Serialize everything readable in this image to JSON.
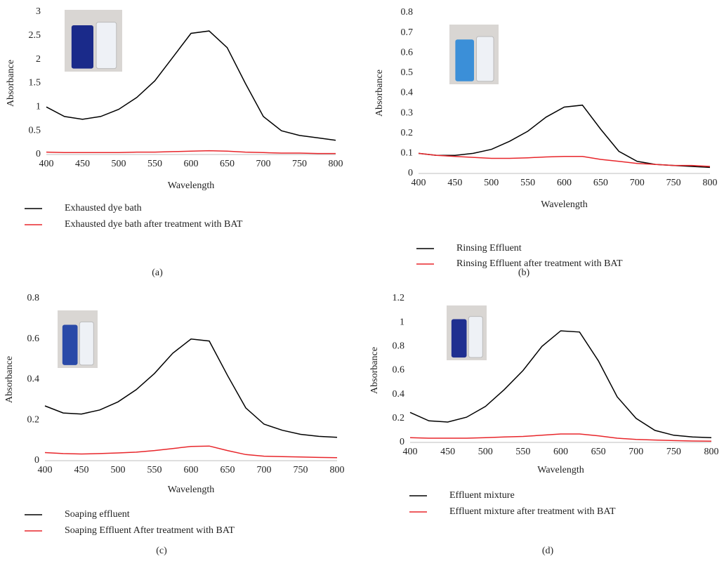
{
  "chart_data": [
    {
      "type": "line",
      "panel_label": "(a)",
      "x_label": "Wavelength",
      "y_label": "Absorbance",
      "x": [
        400,
        425,
        450,
        475,
        500,
        525,
        550,
        575,
        600,
        625,
        650,
        675,
        700,
        725,
        750,
        775,
        800
      ],
      "series": [
        {
          "name": "Exhausted dye bath",
          "color": "#000000",
          "values": [
            1.0,
            0.8,
            0.74,
            0.8,
            0.95,
            1.2,
            1.55,
            2.05,
            2.55,
            2.6,
            2.25,
            1.5,
            0.8,
            0.5,
            0.4,
            0.35,
            0.3
          ]
        },
        {
          "name": "Exhausted dye bath after treatment with BAT",
          "color": "#e8262b",
          "values": [
            0.05,
            0.04,
            0.04,
            0.04,
            0.04,
            0.05,
            0.05,
            0.06,
            0.07,
            0.08,
            0.07,
            0.05,
            0.04,
            0.03,
            0.03,
            0.02,
            0.02
          ]
        }
      ],
      "xlim": [
        400,
        800
      ],
      "xticks": [
        400,
        450,
        500,
        550,
        600,
        650,
        700,
        750,
        800
      ],
      "ylim": [
        0,
        3
      ],
      "yticks": [
        0,
        0.5,
        1,
        1.5,
        2,
        2.5,
        3
      ],
      "grid": false,
      "legend": "bottom"
    },
    {
      "type": "line",
      "panel_label": "(b)",
      "x_label": "Wavelength",
      "y_label": "Absorbance",
      "x": [
        400,
        425,
        450,
        475,
        500,
        525,
        550,
        575,
        600,
        625,
        650,
        675,
        700,
        725,
        750,
        775,
        800
      ],
      "series": [
        {
          "name": "Rinsing Effluent",
          "color": "#000000",
          "values": [
            0.1,
            0.09,
            0.09,
            0.1,
            0.12,
            0.16,
            0.21,
            0.28,
            0.33,
            0.34,
            0.22,
            0.11,
            0.06,
            0.045,
            0.04,
            0.035,
            0.03
          ]
        },
        {
          "name": "Rinsing Effluent after treatment with BAT",
          "color": "#e8262b",
          "values": [
            0.1,
            0.09,
            0.085,
            0.08,
            0.075,
            0.075,
            0.078,
            0.082,
            0.085,
            0.085,
            0.07,
            0.06,
            0.05,
            0.045,
            0.04,
            0.04,
            0.035
          ]
        }
      ],
      "xlim": [
        400,
        800
      ],
      "xticks": [
        400,
        450,
        500,
        550,
        600,
        650,
        700,
        750,
        800
      ],
      "ylim": [
        0,
        0.8
      ],
      "yticks": [
        0,
        0.1,
        0.2,
        0.3,
        0.4,
        0.5,
        0.6,
        0.7,
        0.8
      ],
      "grid": false,
      "legend": "bottom"
    },
    {
      "type": "line",
      "panel_label": "(c)",
      "x_label": "Wavelength",
      "y_label": "Absorbance",
      "x": [
        400,
        425,
        450,
        475,
        500,
        525,
        550,
        575,
        600,
        625,
        650,
        675,
        700,
        725,
        750,
        775,
        800
      ],
      "series": [
        {
          "name": "Soaping effluent",
          "color": "#000000",
          "values": [
            0.27,
            0.235,
            0.23,
            0.25,
            0.29,
            0.35,
            0.43,
            0.53,
            0.6,
            0.59,
            0.42,
            0.26,
            0.18,
            0.15,
            0.13,
            0.12,
            0.115
          ]
        },
        {
          "name": "Soaping Effluent After treatment with BAT",
          "color": "#e8262b",
          "values": [
            0.04,
            0.035,
            0.033,
            0.035,
            0.038,
            0.042,
            0.05,
            0.06,
            0.07,
            0.072,
            0.05,
            0.03,
            0.022,
            0.02,
            0.018,
            0.016,
            0.015
          ]
        }
      ],
      "xlim": [
        400,
        800
      ],
      "xticks": [
        400,
        450,
        500,
        550,
        600,
        650,
        700,
        750,
        800
      ],
      "ylim": [
        0,
        0.8
      ],
      "yticks": [
        0,
        0.2,
        0.4,
        0.6,
        0.8
      ],
      "grid": false,
      "legend": "bottom"
    },
    {
      "type": "line",
      "panel_label": "(d)",
      "x_label": "Wavelength",
      "y_label": "Absorbance",
      "x": [
        400,
        425,
        450,
        475,
        500,
        525,
        550,
        575,
        600,
        625,
        650,
        675,
        700,
        725,
        750,
        775,
        800
      ],
      "series": [
        {
          "name": "Effluent mixture",
          "color": "#000000",
          "values": [
            0.25,
            0.18,
            0.17,
            0.21,
            0.3,
            0.44,
            0.6,
            0.8,
            0.93,
            0.92,
            0.68,
            0.38,
            0.2,
            0.1,
            0.06,
            0.045,
            0.04
          ]
        },
        {
          "name": "Effluent mixture after treatment with BAT",
          "color": "#e8262b",
          "values": [
            0.04,
            0.035,
            0.035,
            0.035,
            0.04,
            0.045,
            0.05,
            0.06,
            0.07,
            0.07,
            0.055,
            0.035,
            0.025,
            0.02,
            0.015,
            0.012,
            0.01
          ]
        }
      ],
      "xlim": [
        400,
        800
      ],
      "xticks": [
        400,
        450,
        500,
        550,
        600,
        650,
        700,
        750,
        800
      ],
      "ylim": [
        0,
        1.2
      ],
      "yticks": [
        0,
        0.2,
        0.4,
        0.6,
        0.8,
        1,
        1.2
      ],
      "grid": false,
      "legend": "bottom"
    }
  ]
}
